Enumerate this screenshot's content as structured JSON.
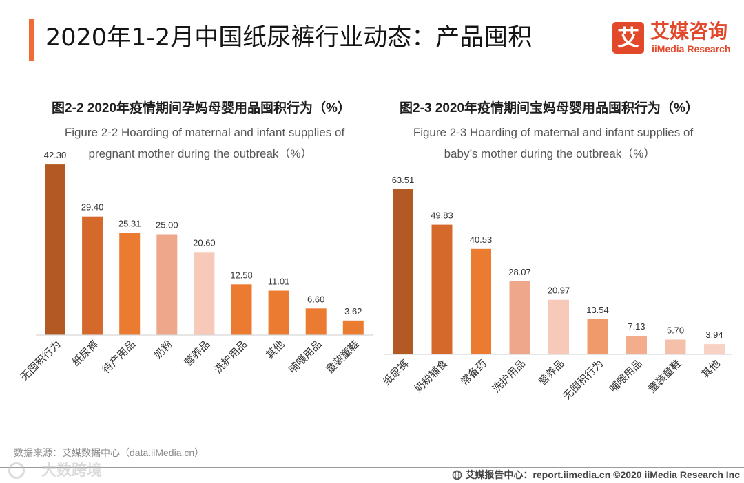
{
  "header": {
    "title": "2020年1-2月中国纸尿裤行业动态：产品囤积",
    "logo_mark": "艾",
    "logo_cn": "艾媒咨询",
    "logo_en": "iiMedia Research"
  },
  "colors": {
    "accent": "#f26a36",
    "brand": "#e2482a",
    "axis": "#d6d6d6"
  },
  "chart_data": [
    {
      "type": "bar",
      "title": "图2-2 2020年疫情期间孕妈母婴用品囤积行为（%）",
      "subtitle": [
        "Figure 2-2 Hoarding of maternal and infant supplies of",
        "pregnant mother during the outbreak（%）"
      ],
      "categories": [
        "无囤积行为",
        "纸尿裤",
        "待产用品",
        "奶粉",
        "营养品",
        "洗护用品",
        "其他",
        "哺喂用品",
        "童装童鞋"
      ],
      "values": [
        42.3,
        29.4,
        25.31,
        25.0,
        20.6,
        12.58,
        11.01,
        6.6,
        3.62
      ],
      "colors": [
        "#b35a24",
        "#d4692b",
        "#ec7b32",
        "#efa78b",
        "#f6c9b8",
        "#ec7b32",
        "#ec7b32",
        "#ec7b32",
        "#ec7b32"
      ],
      "ylim": [
        0,
        50
      ],
      "grid": false
    },
    {
      "type": "bar",
      "title": "图2-3 2020年疫情期间宝妈母婴用品囤积行为（%）",
      "subtitle": [
        "Figure 2-3 Hoarding of maternal and infant supplies of",
        "baby’s mother during the outbreak（%）"
      ],
      "categories": [
        "纸尿裤",
        "奶粉辅食",
        "常备药",
        "洗护用品",
        "营养品",
        "无囤积行为",
        "哺喂用品",
        "童装童鞋",
        "其他"
      ],
      "values": [
        63.51,
        49.83,
        40.53,
        28.07,
        20.97,
        13.54,
        7.13,
        5.7,
        3.94
      ],
      "colors": [
        "#b35a24",
        "#d4692b",
        "#ec7b32",
        "#efa78b",
        "#f6c9b8",
        "#f09a6c",
        "#f3ad8d",
        "#f5c0a9",
        "#f8d3c5"
      ],
      "ylim": [
        0,
        70
      ],
      "grid": false
    }
  ],
  "footer": {
    "source": "数据来源：艾媒数据中心（data.iiMedia.cn）",
    "report_center": "艾媒报告中心：report.iimedia.cn ©2020 iiMedia Research Inc",
    "watermark": "大数跨境"
  }
}
